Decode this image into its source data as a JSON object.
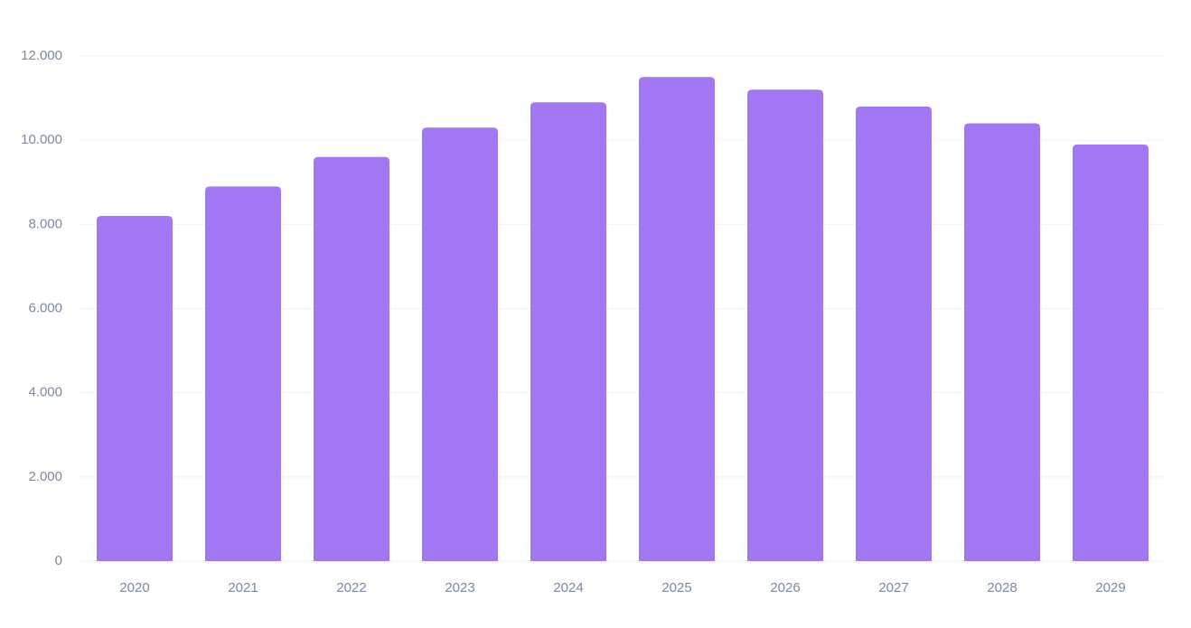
{
  "chart_data": {
    "type": "bar",
    "categories": [
      "2020",
      "2021",
      "2022",
      "2023",
      "2024",
      "2025",
      "2026",
      "2027",
      "2028",
      "2029"
    ],
    "values": [
      8200,
      8900,
      9600,
      10300,
      10900,
      11500,
      11200,
      10800,
      10400,
      9900
    ],
    "color": "#a277f4",
    "ylim": [
      0,
      12000
    ],
    "yticks": [
      0,
      {
        "value": 2000,
        "label": "2.000"
      },
      {
        "value": 4000,
        "label": "4.000"
      },
      {
        "value": 6000,
        "label": "6.000"
      },
      {
        "value": 8000,
        "label": "8.000"
      },
      {
        "value": 10000,
        "label": "10.000"
      },
      {
        "value": 12000,
        "label": "12.000"
      }
    ],
    "grid": true
  }
}
